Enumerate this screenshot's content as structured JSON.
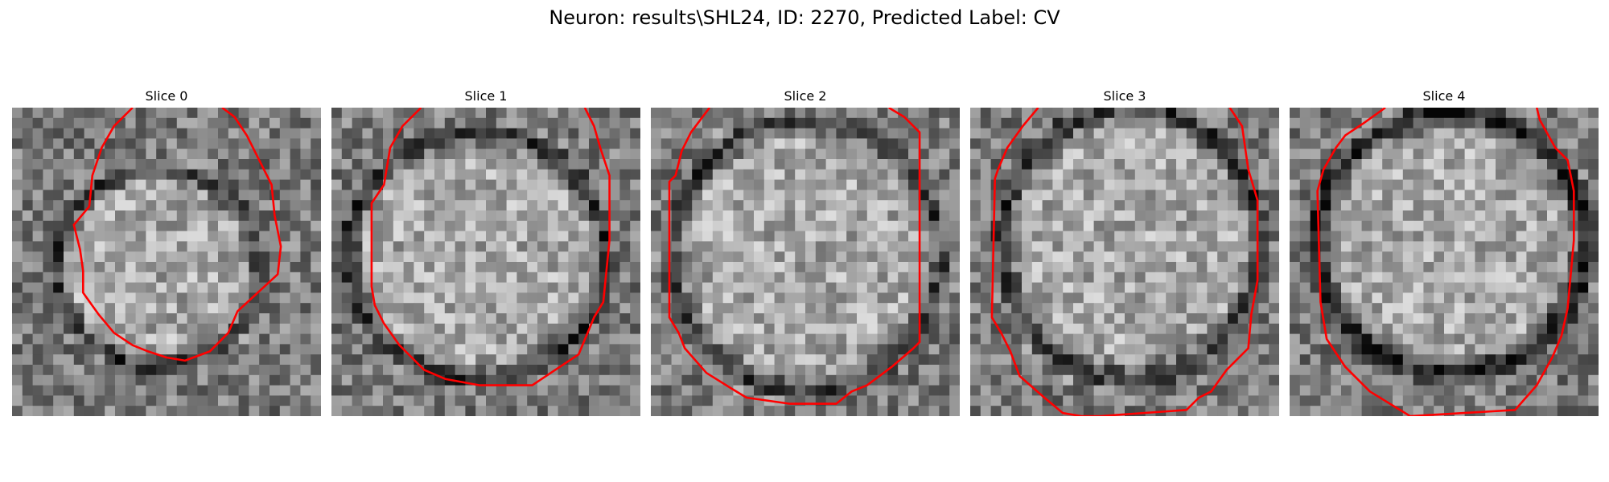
{
  "figure": {
    "suptitle": "Neuron: results\\SHL24, ID: 2270, Predicted Label: CV",
    "colors": {
      "contour": "#ff0000",
      "background": "#ffffff"
    },
    "slices": [
      {
        "title": "Slice 0"
      },
      {
        "title": "Slice 1"
      },
      {
        "title": "Slice 2"
      },
      {
        "title": "Slice 3"
      },
      {
        "title": "Slice 4"
      }
    ]
  }
}
